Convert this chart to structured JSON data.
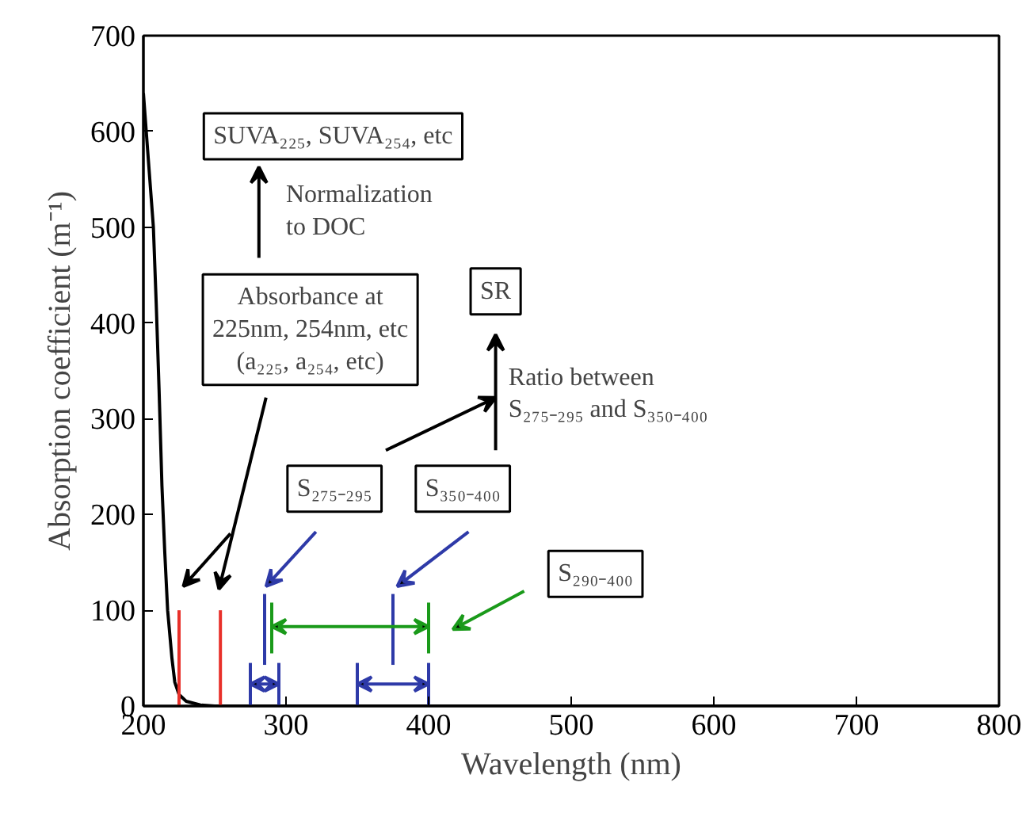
{
  "chart_data": {
    "type": "line",
    "xlabel": "Wavelength (nm)",
    "ylabel": "Absorption coefficient (m⁻¹)",
    "xlim": [
      200,
      800
    ],
    "ylim": [
      0,
      700
    ],
    "xticks": [
      200,
      300,
      400,
      500,
      600,
      700,
      800
    ],
    "yticks": [
      0,
      100,
      200,
      300,
      400,
      500,
      600,
      700
    ],
    "grid": false,
    "series": [
      {
        "color": "#000000",
        "x": [
          200,
          203,
          205,
          207,
          209,
          211,
          213,
          215,
          217,
          220,
          222,
          225,
          230,
          240,
          250,
          800
        ],
        "values": [
          640,
          580,
          540,
          500,
          420,
          330,
          230,
          160,
          100,
          50,
          25,
          12,
          5,
          1,
          0,
          0
        ]
      },
      {
        "color": "#e8302a",
        "x": [
          225,
          225
        ],
        "values": [
          0,
          100
        ]
      },
      {
        "color": "#e8302a",
        "x": [
          254,
          254
        ],
        "values": [
          0,
          100
        ]
      },
      {
        "color": "#2e3aa8",
        "x": [
          285,
          285
        ],
        "values": [
          43,
          117
        ]
      },
      {
        "color": "#2e3aa8",
        "x": [
          375,
          375
        ],
        "values": [
          43,
          117
        ]
      },
      {
        "color": "#1a9a1a",
        "x": [
          290,
          290
        ],
        "values": [
          55,
          108
        ]
      },
      {
        "color": "#1a9a1a",
        "x": [
          400,
          400
        ],
        "values": [
          55,
          108
        ]
      },
      {
        "color": "#2e3aa8",
        "x": [
          275,
          275
        ],
        "values": [
          0,
          45
        ]
      },
      {
        "color": "#2e3aa8",
        "x": [
          295,
          295
        ],
        "values": [
          0,
          45
        ]
      },
      {
        "color": "#2e3aa8",
        "x": [
          350,
          350
        ],
        "values": [
          0,
          45
        ]
      },
      {
        "color": "#2e3aa8",
        "x": [
          400,
          400
        ],
        "values": [
          0,
          45
        ]
      }
    ],
    "annotations": [
      "SUVA₂₂₅, SUVA₂₅₄, etc",
      "Normalization\nto DOC",
      "Absorbance at\n225nm, 254nm, etc\n(a₂₂₅, a₂₅₄, etc)",
      "SR",
      "Ratio between\nS₂₇₅₋₂₉₅ and S₃₅₀₋₄₀₀",
      "S₂₇₅₋₂₉₅",
      "S₃₅₀₋₄₀₀",
      "S₂₉₀₋₄₀₀"
    ]
  }
}
